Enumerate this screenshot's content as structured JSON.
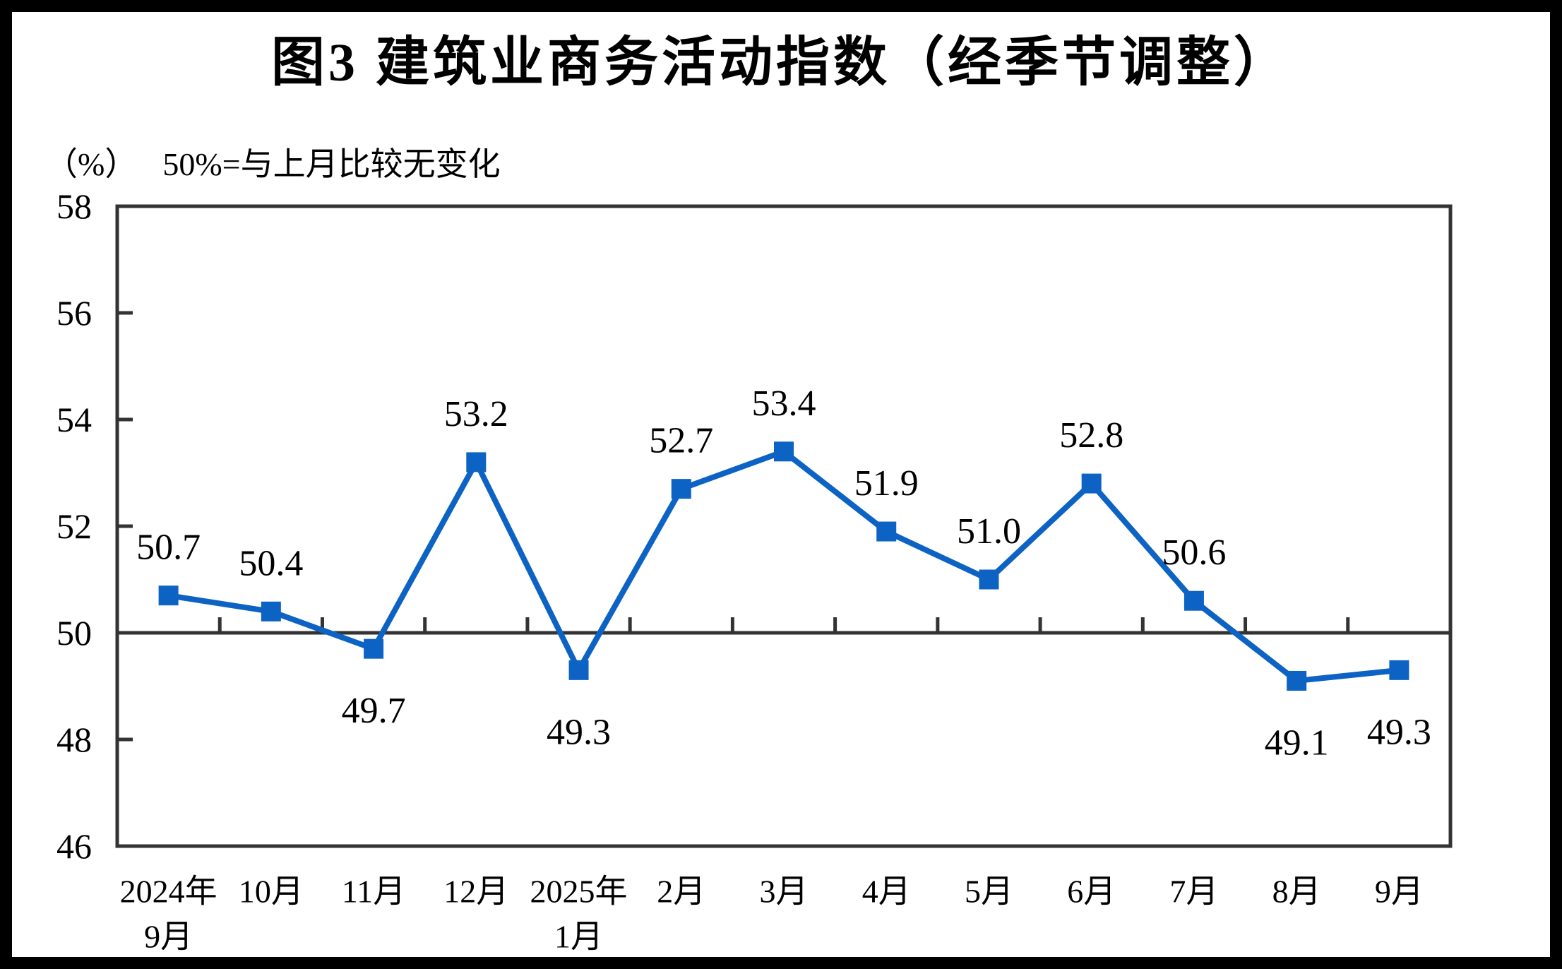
{
  "title": "图3 建筑业商务活动指数（经季节调整）",
  "axis_note": {
    "unit": "（%）",
    "note": "50%=与上月比较无变化"
  },
  "chart_data": {
    "type": "line",
    "title": "图3 建筑业商务活动指数（经季节调整）",
    "categories": [
      "2024年\n9月",
      "10月",
      "11月",
      "12月",
      "2025年\n1月",
      "2月",
      "3月",
      "4月",
      "5月",
      "6月",
      "7月",
      "8月",
      "9月"
    ],
    "values": [
      50.7,
      50.4,
      49.7,
      53.2,
      49.3,
      52.7,
      53.4,
      51.9,
      51.0,
      52.8,
      50.6,
      49.1,
      49.3
    ],
    "label_side": [
      "above",
      "above",
      "below",
      "above",
      "below",
      "above",
      "above",
      "above",
      "above",
      "above",
      "above",
      "below",
      "below"
    ],
    "xlabel": "",
    "ylabel": "（%）",
    "ylim": [
      46,
      58
    ],
    "ytick_step": 2,
    "yticks": [
      58,
      56,
      54,
      52,
      50,
      48,
      46
    ],
    "baseline": 50,
    "grid": false,
    "legend_position": "none",
    "colors": {
      "line": "#0d63c4",
      "marker": "#0d63c4",
      "axis": "#333333",
      "text": "#000000",
      "frame": "#000000"
    }
  }
}
